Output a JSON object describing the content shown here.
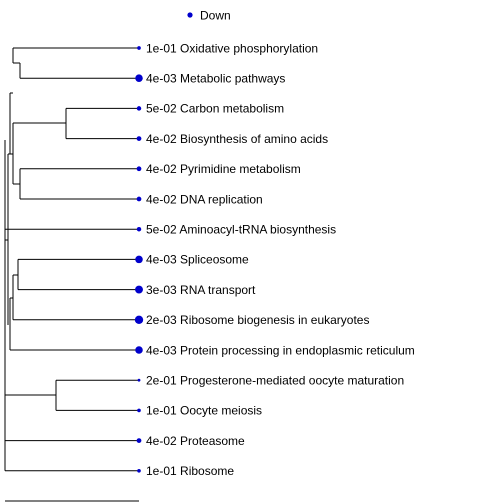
{
  "legend": {
    "label": "Down",
    "color": "#0000cc"
  },
  "colors": {
    "point": "#0000cc",
    "line": "#000000"
  },
  "tree": {
    "node_order": "top-to-bottom",
    "terms": [
      {
        "pvalue": "1e-01",
        "name": "Oxidative phosphorylation"
      },
      {
        "pvalue": "4e-03",
        "name": "Metabolic pathways"
      },
      {
        "pvalue": "5e-02",
        "name": "Carbon metabolism"
      },
      {
        "pvalue": "4e-02",
        "name": "Biosynthesis of amino acids"
      },
      {
        "pvalue": "4e-02",
        "name": "Pyrimidine metabolism"
      },
      {
        "pvalue": "4e-02",
        "name": "DNA replication"
      },
      {
        "pvalue": "5e-02",
        "name": "Aminoacyl-tRNA biosynthesis"
      },
      {
        "pvalue": "4e-03",
        "name": "Spliceosome"
      },
      {
        "pvalue": "3e-03",
        "name": "RNA transport"
      },
      {
        "pvalue": "2e-03",
        "name": "Ribosome biogenesis in eukaryotes"
      },
      {
        "pvalue": "4e-03",
        "name": "Protein processing in endoplasmic reticulum"
      },
      {
        "pvalue": "2e-01",
        "name": "Progesterone-mediated oocyte maturation"
      },
      {
        "pvalue": "1e-01",
        "name": "Oocyte meiosis"
      },
      {
        "pvalue": "4e-02",
        "name": "Proteasome"
      },
      {
        "pvalue": "1e-01",
        "name": "Ribosome"
      }
    ]
  }
}
